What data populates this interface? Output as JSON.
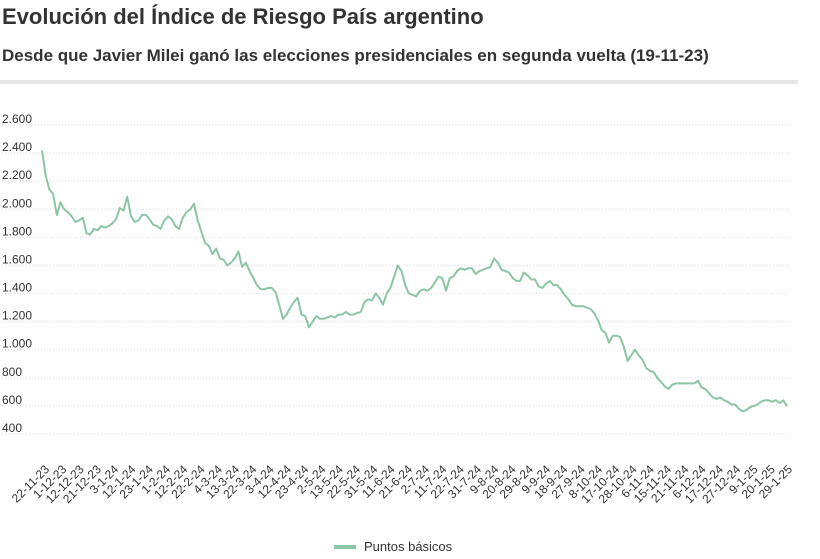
{
  "header": {
    "title": "Evolución del Índice de Riesgo País argentino",
    "subtitle": "Desde que Javier Milei ganó las elecciones presidenciales en segunda vuelta (19-11-23)"
  },
  "colors": {
    "series": "#8cc5a5",
    "grid": "#dcdcdc",
    "text": "#333333"
  },
  "chart_data": {
    "type": "line",
    "title": "Evolución del Índice de Riesgo País argentino",
    "subtitle": "Desde que Javier Milei ganó las elecciones presidenciales en segunda vuelta (19-11-23)",
    "ylim": [
      400,
      2600
    ],
    "y_ticks": [
      400,
      600,
      800,
      1000,
      1200,
      1400,
      1600,
      1800,
      2000,
      2200,
      2400,
      2600
    ],
    "y_tick_labels": [
      "400",
      "600",
      "800",
      "1.000",
      "1.200",
      "1.400",
      "1.600",
      "1.800",
      "2.000",
      "2.200",
      "2.400",
      "2.600"
    ],
    "x_tick_labels": [
      "22-11-23",
      "1-12-23",
      "12-12-23",
      "21-12-23",
      "3-1-24",
      "12-1-24",
      "23-1-24",
      "1-2-24",
      "12-2-24",
      "22-2-24",
      "4-3-24",
      "13-3-24",
      "22-3-24",
      "3-4-24",
      "12-4-24",
      "23-4-24",
      "2-5-24",
      "13-5-24",
      "22-5-24",
      "31-5-24",
      "11-6-24",
      "21-6-24",
      "2-7-24",
      "11-7-24",
      "22-7-24",
      "31-7-24",
      "9-8-24",
      "20-8-24",
      "29-8-24",
      "9-9-24",
      "18-9-24",
      "27-9-24",
      "8-10-24",
      "17-10-24",
      "28-10-24",
      "6-11-24",
      "15-11-24",
      "21-11-24",
      "6-12-24",
      "17-12-24",
      "27-12-24",
      "9-1-25",
      "20-1-25",
      "29-1-25"
    ],
    "grid": true,
    "legend": "bottom",
    "series": [
      {
        "name": "Puntos básicos",
        "values": [
          2420,
          2240,
          2140,
          2110,
          1960,
          2050,
          2000,
          1980,
          1950,
          1910,
          1920,
          1940,
          1830,
          1820,
          1860,
          1850,
          1880,
          1870,
          1880,
          1900,
          1930,
          2010,
          1990,
          2090,
          1950,
          1910,
          1920,
          1960,
          1960,
          1930,
          1890,
          1880,
          1860,
          1920,
          1950,
          1930,
          1880,
          1860,
          1940,
          1980,
          2000,
          2040,
          1920,
          1840,
          1760,
          1740,
          1680,
          1720,
          1650,
          1640,
          1600,
          1620,
          1650,
          1700,
          1590,
          1620,
          1560,
          1510,
          1460,
          1430,
          1430,
          1440,
          1440,
          1410,
          1320,
          1220,
          1250,
          1300,
          1340,
          1370,
          1250,
          1240,
          1160,
          1200,
          1240,
          1220,
          1220,
          1230,
          1240,
          1230,
          1250,
          1250,
          1270,
          1250,
          1250,
          1260,
          1270,
          1340,
          1360,
          1350,
          1400,
          1370,
          1320,
          1400,
          1440,
          1520,
          1600,
          1560,
          1460,
          1400,
          1390,
          1380,
          1420,
          1430,
          1420,
          1440,
          1480,
          1520,
          1510,
          1420,
          1510,
          1520,
          1560,
          1580,
          1570,
          1580,
          1580,
          1540,
          1560,
          1570,
          1580,
          1590,
          1650,
          1620,
          1570,
          1560,
          1550,
          1510,
          1490,
          1490,
          1550,
          1530,
          1500,
          1500,
          1450,
          1440,
          1470,
          1490,
          1460,
          1460,
          1430,
          1390,
          1360,
          1320,
          1310,
          1310,
          1310,
          1300,
          1290,
          1260,
          1210,
          1140,
          1120,
          1050,
          1100,
          1100,
          1090,
          1020,
          920,
          960,
          1000,
          960,
          930,
          870,
          850,
          840,
          800,
          770,
          740,
          720,
          750,
          760,
          760,
          760,
          760,
          760,
          760,
          780,
          730,
          720,
          690,
          660,
          650,
          660,
          640,
          630,
          610,
          610,
          580,
          560,
          570,
          590,
          600,
          610,
          630,
          640,
          640,
          630,
          640,
          620,
          640,
          600
        ]
      }
    ]
  }
}
